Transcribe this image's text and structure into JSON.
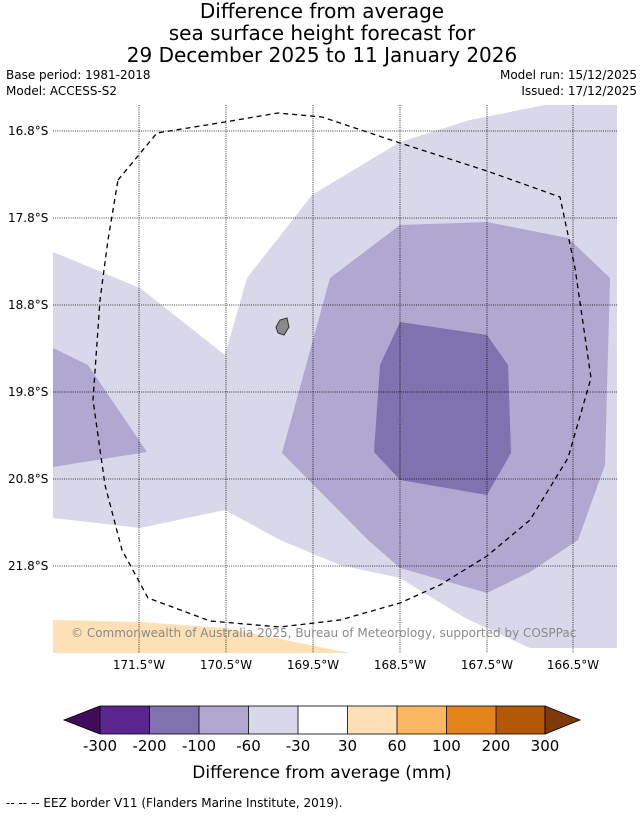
{
  "title": {
    "line1": "Difference from average",
    "line2": "sea surface height forecast for",
    "line3": "29 December 2025 to 11 January 2026"
  },
  "meta": {
    "base_period": "Base period: 1981-2018",
    "model": "Model: ACCESS-S2",
    "model_run": "Model run: 15/12/2025",
    "issued": "Issued: 17/12/2025"
  },
  "map": {
    "lat_labels": [
      "16.8°S",
      "17.8°S",
      "18.8°S",
      "19.8°S",
      "20.8°S",
      "21.8°S"
    ],
    "lon_labels": [
      "171.5°W",
      "170.5°W",
      "169.5°W",
      "168.5°W",
      "167.5°W",
      "166.5°W"
    ],
    "copyright": "© Commonwealth of Australia 2025, Bureau of Meteorology, supported by COSPPac",
    "colors": {
      "neg_30_60": "#d8d8ea",
      "neg_60_100": "#b0a8d0",
      "neg_100_200": "#7f72ae",
      "pos_30_60": "#fde0b5",
      "land": "#8a8a8a"
    }
  },
  "colorbar": {
    "ticks": [
      "-300",
      "-200",
      "-100",
      "-60",
      "-30",
      "30",
      "60",
      "100",
      "200",
      "300"
    ],
    "label": "Difference from average (mm)",
    "low_extend_color": "#3f0b5a",
    "high_extend_color": "#7f3a0c",
    "colors": [
      "#5b2590",
      "#7f72ae",
      "#b0a8d0",
      "#d8d8ea",
      "#ffffff",
      "#fde0b5",
      "#fbb762",
      "#e2841a",
      "#b35806"
    ]
  },
  "footer": {
    "eez_note": "--  --  -- EEZ border V11 (Flanders Marine Institute, 2019)."
  }
}
